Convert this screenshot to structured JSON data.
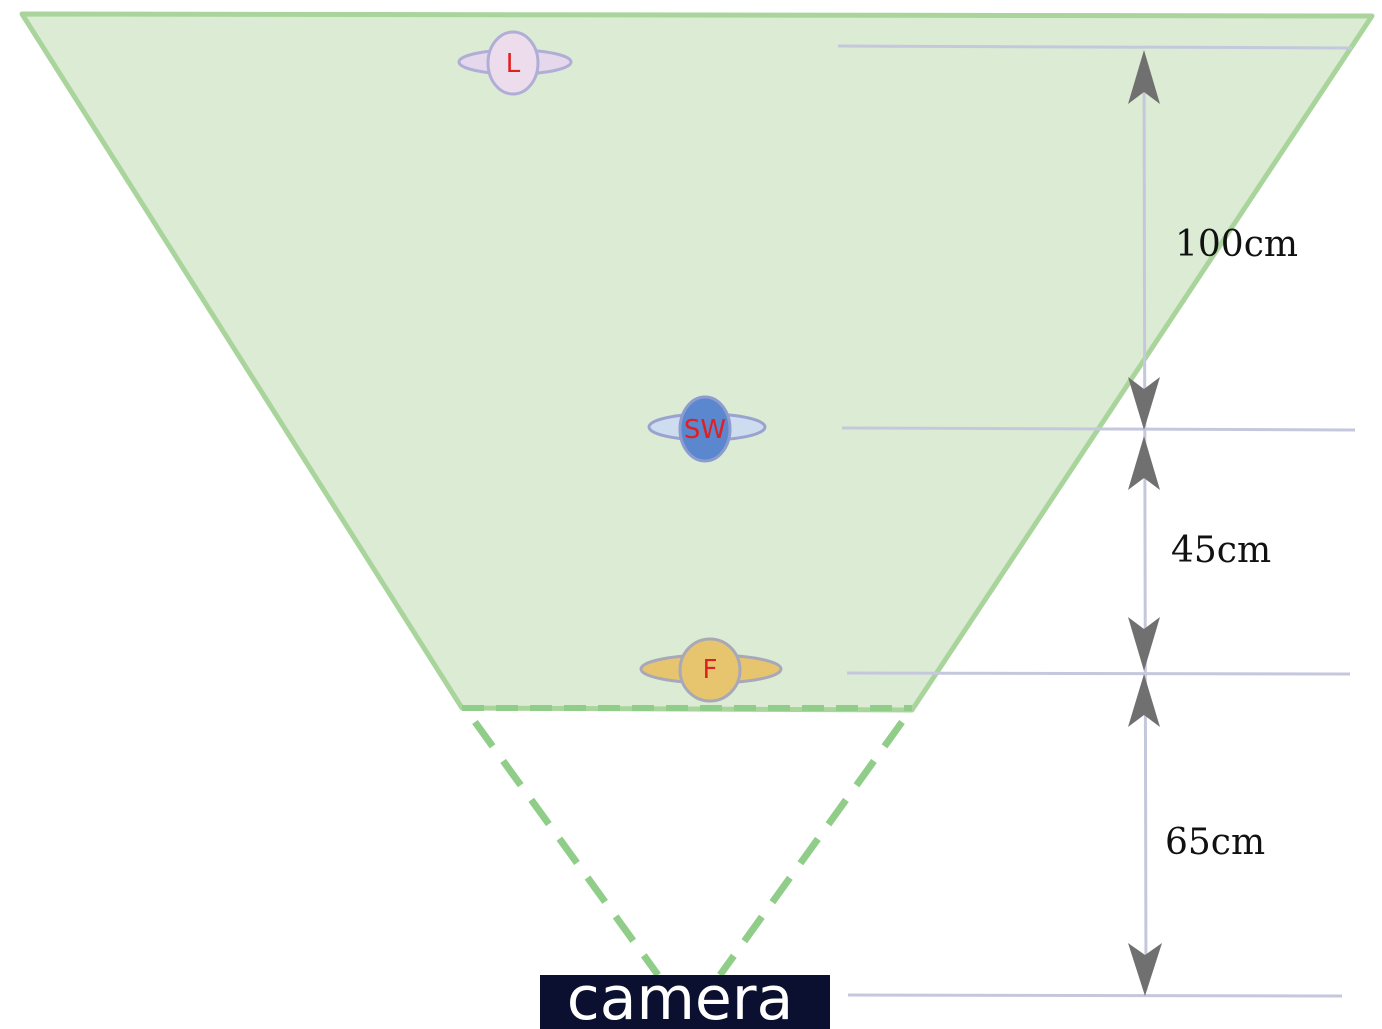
{
  "diagram": {
    "people": [
      {
        "id": "L",
        "label": "L",
        "body_color": "#eddcec",
        "arm_color": "#e6d8ec",
        "letter_color": "#e02020"
      },
      {
        "id": "SW",
        "label": "SW",
        "body_color": "#5b87cf",
        "arm_color": "#cddcee",
        "letter_color": "#e02020"
      },
      {
        "id": "F",
        "label": "F",
        "body_color": "#e7c56f",
        "arm_color": "#e7c56f",
        "letter_color": "#e02020"
      }
    ],
    "distances": [
      {
        "label": "100cm"
      },
      {
        "label": "45cm"
      },
      {
        "label": "65cm"
      }
    ],
    "camera_label": "camera",
    "colors": {
      "field_fill": "#dcebd3",
      "field_stroke": "#a9d59d",
      "dashed": "#8fcd88",
      "guide_line": "#c5c8dc",
      "arrow": "#707070",
      "camera_bg": "#0b1030"
    }
  }
}
